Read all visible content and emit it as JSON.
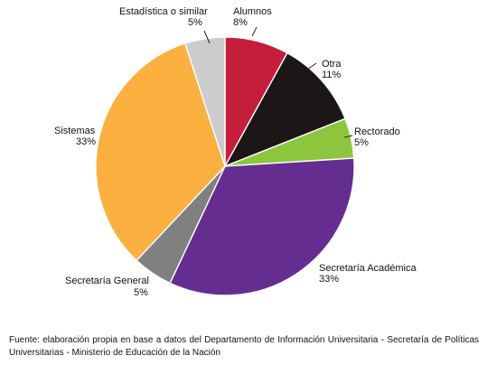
{
  "chart_data": {
    "type": "pie",
    "slices": [
      {
        "label": "Alumnos",
        "pct_label": "8%",
        "value": 8,
        "color": "#c41e3a"
      },
      {
        "label": "Otra",
        "pct_label": "11%",
        "value": 11,
        "color": "#1c1616"
      },
      {
        "label": "Rectorado",
        "pct_label": "5%",
        "value": 5,
        "color": "#8cc63f"
      },
      {
        "label": "Secretaría Académica",
        "pct_label": "33%",
        "value": 33,
        "color": "#662d91"
      },
      {
        "label": "Secretaría General",
        "pct_label": "5%",
        "value": 5,
        "color": "#808080"
      },
      {
        "label": "Sistemas",
        "pct_label": "33%",
        "value": 33,
        "color": "#fbb040"
      },
      {
        "label": "Estadística o similar",
        "pct_label": "5%",
        "value": 5,
        "color": "#cccccc"
      }
    ]
  },
  "source_note": "Fuente: elaboración propia en base a datos del Departamento de Información Universitaria - Secretaría de Políticas Universitarias - Ministerio de Educación de la Nación"
}
